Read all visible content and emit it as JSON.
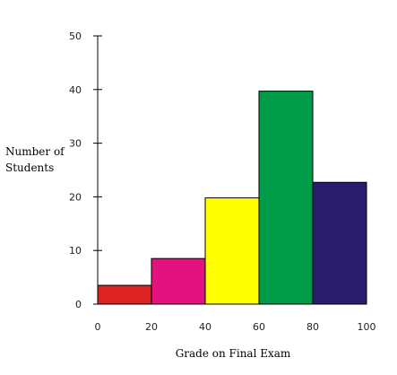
{
  "chart_data": {
    "type": "bar",
    "title": "",
    "xlabel": "Grade on Final Exam",
    "ylabel_lines": [
      "Number of",
      "Students"
    ],
    "bins": [
      {
        "start": 0,
        "end": 20,
        "value": 3.5,
        "color": "#dd2222"
      },
      {
        "start": 20,
        "end": 40,
        "value": 8.5,
        "color": "#e2137e"
      },
      {
        "start": 40,
        "end": 60,
        "value": 19.8,
        "color": "#ffff00"
      },
      {
        "start": 60,
        "end": 80,
        "value": 39.7,
        "color": "#009b48"
      },
      {
        "start": 80,
        "end": 100,
        "value": 22.7,
        "color": "#2b1d6e"
      }
    ],
    "xlim": [
      0,
      100
    ],
    "ylim": [
      0,
      50
    ],
    "x_ticks": [
      "0",
      "20",
      "40",
      "60",
      "80",
      "100"
    ],
    "y_ticks": [
      "0",
      "10",
      "20",
      "30",
      "40",
      "50"
    ],
    "grid": false
  }
}
